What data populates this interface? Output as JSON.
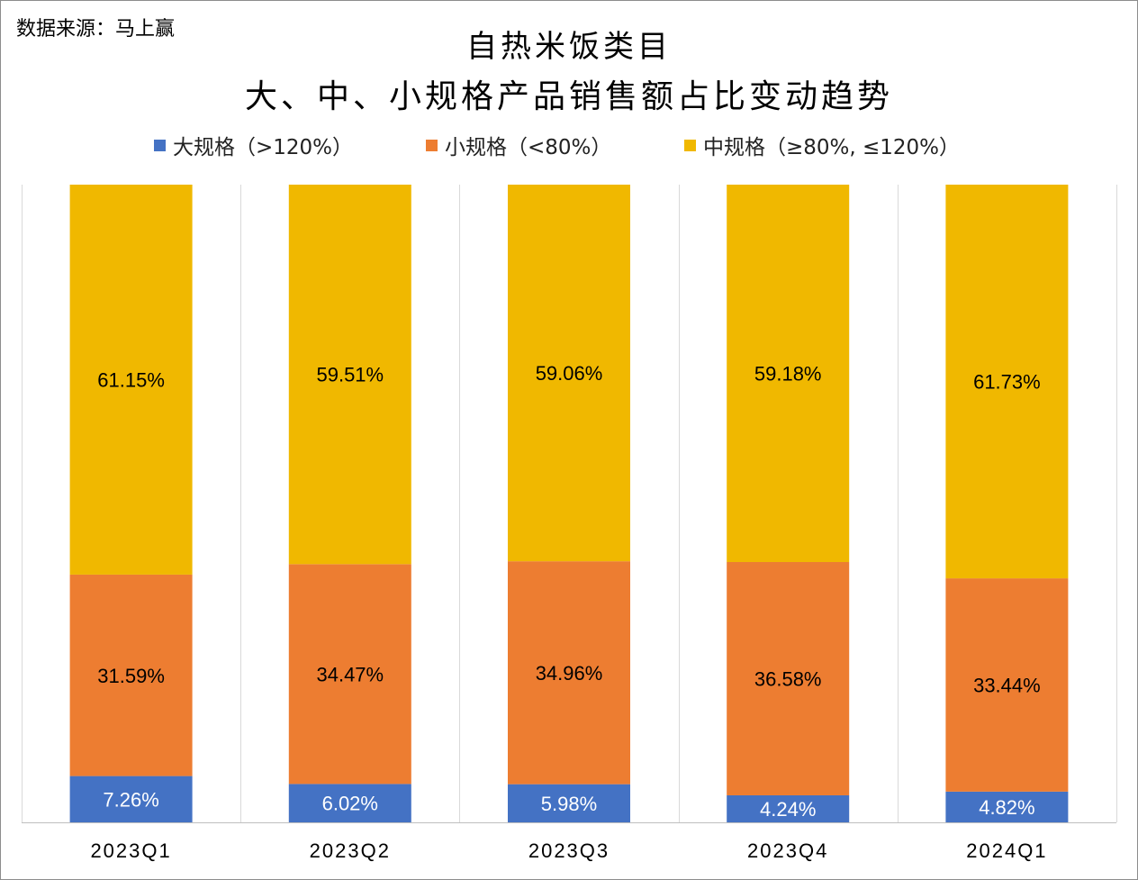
{
  "source": "数据来源：马上赢",
  "chart_data": {
    "type": "bar",
    "stacked": true,
    "normalized": true,
    "title": "自热米饭类目",
    "subtitle": "大、中、小规格产品销售额占比变动趋势",
    "categories": [
      "2023Q1",
      "2023Q2",
      "2023Q3",
      "2023Q4",
      "2024Q1"
    ],
    "series": [
      {
        "name": "大规格（>120%）",
        "color": "#4472c4",
        "values": [
          7.26,
          6.02,
          5.98,
          4.24,
          4.82
        ],
        "labels": [
          "7.26%",
          "6.02%",
          "5.98%",
          "4.24%",
          "4.82%"
        ]
      },
      {
        "name": "小规格（<80%）",
        "color": "#ed7d31",
        "values": [
          31.59,
          34.47,
          34.96,
          36.58,
          33.44
        ],
        "labels": [
          "31.59%",
          "34.47%",
          "34.96%",
          "36.58%",
          "33.44%"
        ]
      },
      {
        "name": "中规格（≥80%, ≤120%）",
        "color": "#f0b800",
        "values": [
          61.15,
          59.51,
          59.06,
          59.18,
          61.73
        ],
        "labels": [
          "61.15%",
          "59.51%",
          "59.06%",
          "59.18%",
          "61.73%"
        ]
      }
    ],
    "ylim": [
      0,
      100
    ],
    "grid": "vertical",
    "legend": "top"
  }
}
